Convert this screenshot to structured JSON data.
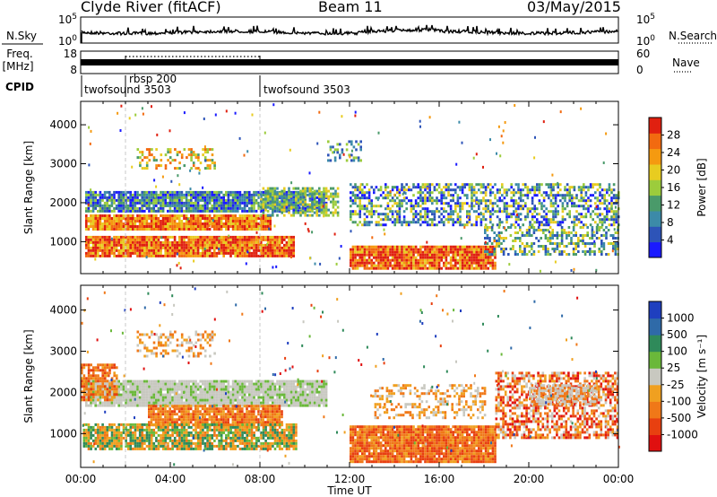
{
  "header": {
    "title": "Clyde River (fitACF)",
    "beam": "Beam 11",
    "date": "03/May/2015"
  },
  "chart_data": [
    {
      "type": "line",
      "panel": "noise",
      "left_label": "N.Sky",
      "right_label": "N.Search",
      "left_ticks": [
        "10^5",
        "10^0"
      ],
      "right_ticks": [
        "10^5",
        "10^0"
      ],
      "note": "noise level trace across the day, near the top of the log range"
    },
    {
      "type": "line",
      "panel": "frequency",
      "left_label": "Freq.",
      "left_unit": "[MHz]",
      "right_label": "Nave",
      "left_ticks": [
        "18",
        "8"
      ],
      "right_ticks": [
        "60",
        "0"
      ],
      "dotted_segment_hours": [
        2.0,
        8.0
      ]
    },
    {
      "type": "table",
      "panel": "cpid",
      "label": "CPID",
      "entries": [
        {
          "start_hour": 0.0,
          "text": "twofsound 3503"
        },
        {
          "start_hour": 2.0,
          "text": "rbsp 200"
        },
        {
          "start_hour": 8.0,
          "text": "twofsound 3503"
        }
      ]
    },
    {
      "type": "heatmap",
      "panel": "power",
      "ylabel": "Slant Range [km]",
      "yticks": [
        1000,
        2000,
        3000,
        4000
      ],
      "ylim": [
        180,
        4600
      ],
      "colorbar_label": "Power [dB]",
      "colorbar_ticks": [
        4,
        8,
        12,
        16,
        20,
        24,
        28
      ],
      "colorbar_range": [
        0,
        32
      ],
      "colors": [
        "#1a1aff",
        "#2d54b8",
        "#3c8aa8",
        "#4a9a6a",
        "#9ccc3c",
        "#e8cc20",
        "#f59a10",
        "#f26a10",
        "#e02010"
      ]
    },
    {
      "type": "heatmap",
      "panel": "velocity",
      "ylabel": "Slant Range [km]",
      "yticks": [
        1000,
        2000,
        3000,
        4000
      ],
      "ylim": [
        180,
        4600
      ],
      "colorbar_label": "Velocity [m s⁻¹]",
      "colorbar_ticks": [
        "1000",
        "500",
        "100",
        "25",
        "-25",
        "-100",
        "-500",
        "-1000"
      ],
      "colors": [
        "#1f3fbf",
        "#2f6aa8",
        "#2f8a5a",
        "#6ab83a",
        "#c8c8c0",
        "#f0a020",
        "#f07818",
        "#e84010",
        "#e01010"
      ]
    }
  ],
  "xaxis": {
    "label": "Time UT",
    "ticks": [
      "00:00",
      "04:00",
      "08:00",
      "12:00",
      "16:00",
      "20:00",
      "00:00"
    ],
    "range_hours": [
      0,
      24
    ]
  }
}
